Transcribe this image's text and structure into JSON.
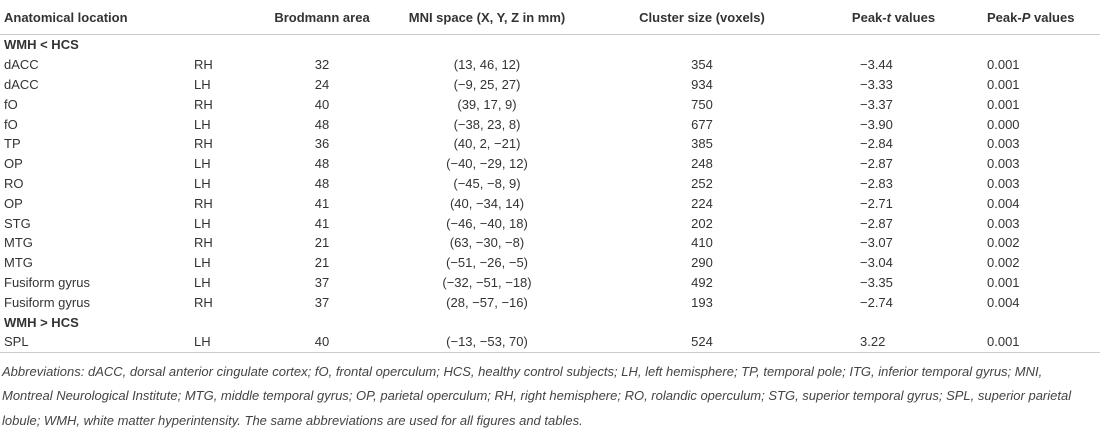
{
  "table": {
    "header": [
      "Anatomical location",
      "Brodmann area",
      "MNI space (X, Y, Z in mm)",
      "Cluster size (voxels)",
      [
        "Peak-",
        "t",
        " values"
      ],
      [
        "Peak-",
        "P",
        " values"
      ]
    ],
    "rows": [
      {
        "group": "WMH < HCS"
      },
      {
        "cells": [
          "dACC",
          "RH",
          "32",
          "(13, 46, 12)",
          "354",
          "−3.44",
          "0.001"
        ]
      },
      {
        "cells": [
          "dACC",
          "LH",
          "24",
          "(−9, 25, 27)",
          "934",
          "−3.33",
          "0.001"
        ]
      },
      {
        "cells": [
          "fO",
          "RH",
          "40",
          "(39, 17, 9)",
          "750",
          "−3.37",
          "0.001"
        ]
      },
      {
        "cells": [
          "fO",
          "LH",
          "48",
          "(−38, 23, 8)",
          "677",
          "−3.90",
          "0.000"
        ]
      },
      {
        "cells": [
          "TP",
          "RH",
          "36",
          "(40, 2, −21)",
          "385",
          "−2.84",
          "0.003"
        ]
      },
      {
        "cells": [
          "OP",
          "LH",
          "48",
          "(−40, −29, 12)",
          "248",
          "−2.87",
          "0.003"
        ]
      },
      {
        "cells": [
          "RO",
          "LH",
          "48",
          "(−45, −8, 9)",
          "252",
          "−2.83",
          "0.003"
        ]
      },
      {
        "cells": [
          "OP",
          "RH",
          "41",
          "(40, −34, 14)",
          "224",
          "−2.71",
          "0.004"
        ]
      },
      {
        "cells": [
          "STG",
          "LH",
          "41",
          "(−46, −40, 18)",
          "202",
          "−2.87",
          "0.003"
        ]
      },
      {
        "cells": [
          "MTG",
          "RH",
          "21",
          "(63, −30, −8)",
          "410",
          "−3.07",
          "0.002"
        ]
      },
      {
        "cells": [
          "MTG",
          "LH",
          "21",
          "(−51, −26, −5)",
          "290",
          "−3.04",
          "0.002"
        ]
      },
      {
        "cells": [
          "Fusiform gyrus",
          "LH",
          "37",
          "(−32, −51, −18)",
          "492",
          "−3.35",
          "0.001"
        ]
      },
      {
        "cells": [
          "Fusiform gyrus",
          "RH",
          "37",
          "(28, −57, −16)",
          "193",
          "−2.74",
          "0.004"
        ]
      },
      {
        "group": "WMH > HCS"
      },
      {
        "cells": [
          "SPL",
          "LH",
          "40",
          "(−13, −53, 70)",
          "524",
          "3.22",
          "0.001"
        ]
      }
    ]
  },
  "footnote": "Abbreviations: dACC, dorsal anterior cingulate cortex; fO, frontal operculum; HCS, healthy control subjects; LH, left hemisphere; TP, temporal pole; ITG, inferior temporal gyrus; MNI, Montreal Neurological Institute; MTG, middle temporal gyrus; OP, parietal operculum; RH, right hemisphere; RO, rolandic operculum; STG, superior temporal gyrus; SPL, superior parietal lobule; WMH, white matter hyperintensity. The same abbreviations are used for all figures and tables."
}
